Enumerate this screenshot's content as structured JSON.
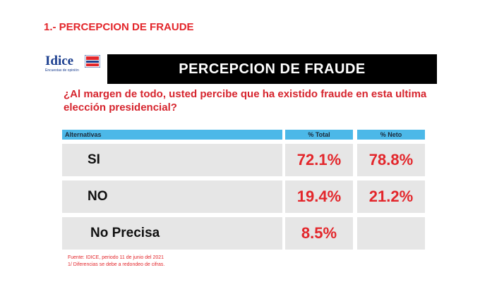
{
  "section_title": "1.- PERCEPCION DE FRAUDE",
  "logo": {
    "name": "Idice",
    "tagline": "Encuestas de opinión"
  },
  "chart_data": {
    "type": "table",
    "title": "PERCEPCION DE FRAUDE",
    "subtitle": "¿Al margen de todo, usted percibe que ha existido fraude en esta ultima elección presidencial?",
    "columns": [
      "Alternativas",
      "% Total",
      "% Neto"
    ],
    "categories": [
      "SI",
      "NO",
      "No Precisa"
    ],
    "series": [
      {
        "name": "% Total",
        "values": [
          72.1,
          19.4,
          8.5
        ]
      },
      {
        "name": "% Neto",
        "values": [
          78.8,
          21.2,
          null
        ]
      }
    ],
    "display": {
      "total": [
        "72.1%",
        "19.4%",
        "8.5%"
      ],
      "neto": [
        "78.8%",
        "21.2%",
        ""
      ]
    }
  },
  "footnotes": [
    "Fuente: IDICE, periodo 11 de junio del 2021",
    "1/ Diferencias se debe a redondeo de cifras."
  ],
  "colors": {
    "accent_red": "#e3262b",
    "header_blue": "#4cb8e8",
    "banner": "#000000",
    "cell_bg": "#e6e6e6",
    "logo_blue": "#1c3f8f"
  }
}
